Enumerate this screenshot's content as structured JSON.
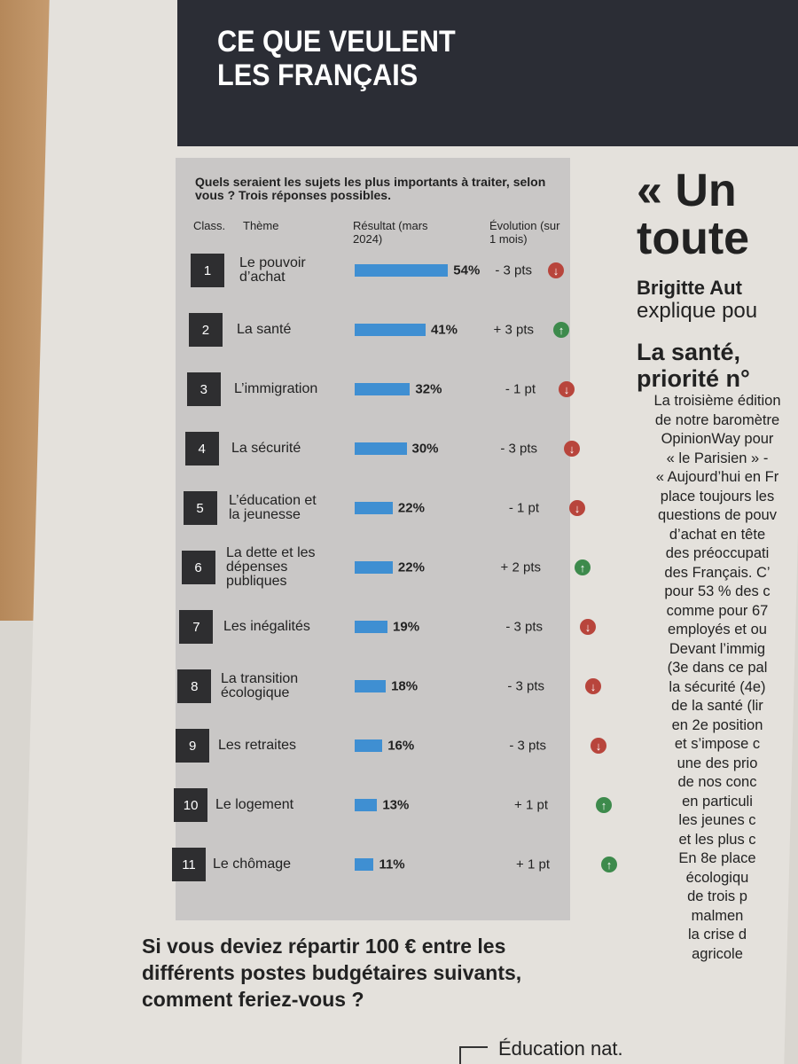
{
  "header": {
    "title_lines": [
      "CE QUE VEULENT",
      "LES FRANÇAIS"
    ]
  },
  "chart_data": {
    "type": "bar",
    "title": "Quels seraient les sujets les plus importants à traiter, selon vous ? Trois réponses possibles.",
    "columns": {
      "rank": "Class.",
      "theme": "Thème",
      "result": "Résultat (mars 2024)",
      "evolution": "Évolution (sur 1 mois)"
    },
    "ranks": [
      "1",
      "2",
      "3",
      "4",
      "5",
      "6",
      "7",
      "8",
      "9",
      "10",
      "11"
    ],
    "categories": [
      "Le pouvoir d’achat",
      "La santé",
      "L’immigration",
      "La sécurité",
      "L’éducation et la jeunesse",
      "La dette et les dépenses publiques",
      "Les inégalités",
      "La transition écologique",
      "Les retraites",
      "Le logement",
      "Le chômage"
    ],
    "values": [
      54,
      41,
      32,
      30,
      22,
      22,
      19,
      18,
      16,
      13,
      11
    ],
    "value_labels": [
      "54%",
      "41%",
      "32%",
      "30%",
      "22%",
      "22%",
      "19%",
      "18%",
      "16%",
      "13%",
      "11%"
    ],
    "evolution": [
      -3,
      3,
      -1,
      -3,
      -1,
      2,
      -3,
      -3,
      -3,
      1,
      1
    ],
    "evolution_labels": [
      "- 3 pts",
      "+ 3 pts",
      "- 1 pt",
      "- 3 pts",
      "- 1 pt",
      "+ 2 pts",
      "- 3 pts",
      "- 3 pts",
      "- 3 pts",
      "+ 1 pt",
      "+ 1 pt"
    ],
    "color": "#3f8fd2",
    "up_color": "#3d8a4c",
    "down_color": "#b8453c"
  },
  "question": "Si vous deviez répartir 100 € entre les différents postes budgétaires suivants, comment feriez-vous ?",
  "legend_item": "Éducation nat.",
  "article": {
    "headline": [
      "« Un",
      "toute"
    ],
    "byline": [
      "Brigitte Aut",
      "explique pou"
    ],
    "subhead": [
      "La santé,",
      "priorité n°"
    ],
    "body": [
      "La troisième édition",
      "de notre baromètre",
      "OpinionWay pour",
      "« le Parisien » -",
      "« Aujourd’hui en Fr",
      "place toujours les",
      "questions de pouv",
      "d’achat en tête",
      "des préoccupati",
      "des Français. C’",
      "pour 53 % des c",
      "comme pour 67",
      "employés et ou",
      "Devant l’immig",
      "(3e dans ce pal",
      "la sécurité (4e)",
      "de la santé (lir",
      "en 2e position",
      "et s’impose c",
      "une des prio",
      "de nos conc",
      "en particuli",
      "les jeunes c",
      "et les plus c",
      "En 8e place",
      "écologiqu",
      "de trois p",
      "malmen",
      "la crise d",
      "agricole"
    ]
  }
}
